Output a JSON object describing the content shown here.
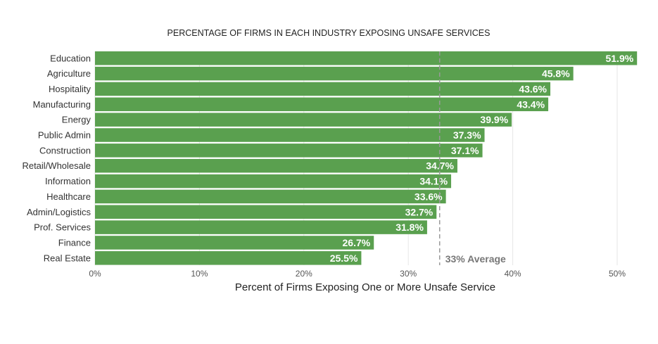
{
  "chart_data": {
    "type": "bar",
    "orientation": "horizontal",
    "title": "PERCENTAGE OF FIRMS IN EACH INDUSTRY EXPOSING UNSAFE SERVICES",
    "xlabel": "Percent of Firms Exposing One or More Unsafe Service",
    "ylabel": "",
    "categories": [
      "Education",
      "Agriculture",
      "Hospitality",
      "Manufacturing",
      "Energy",
      "Public Admin",
      "Construction",
      "Retail/Wholesale",
      "Information",
      "Healthcare",
      "Admin/Logistics",
      "Prof. Services",
      "Finance",
      "Real Estate"
    ],
    "values": [
      51.9,
      45.8,
      43.6,
      43.4,
      39.9,
      37.3,
      37.1,
      34.7,
      34.1,
      33.6,
      32.7,
      31.8,
      26.7,
      25.5
    ],
    "value_labels": [
      "51.9%",
      "45.8%",
      "43.6%",
      "43.4%",
      "39.9%",
      "37.3%",
      "37.1%",
      "34.7%",
      "34.1%",
      "33.6%",
      "32.7%",
      "31.8%",
      "26.7%",
      "25.5%"
    ],
    "xlim": [
      0,
      52
    ],
    "xticks": [
      0,
      10,
      20,
      30,
      40,
      50
    ],
    "xtick_labels": [
      "0%",
      "10%",
      "20%",
      "30%",
      "40%",
      "50%"
    ],
    "grid": true,
    "reference_line": {
      "value": 33,
      "label": "33% Average"
    },
    "colors": {
      "bar": "#5aa04f",
      "grid": "#e6e6e6",
      "reference": "#999999"
    }
  }
}
